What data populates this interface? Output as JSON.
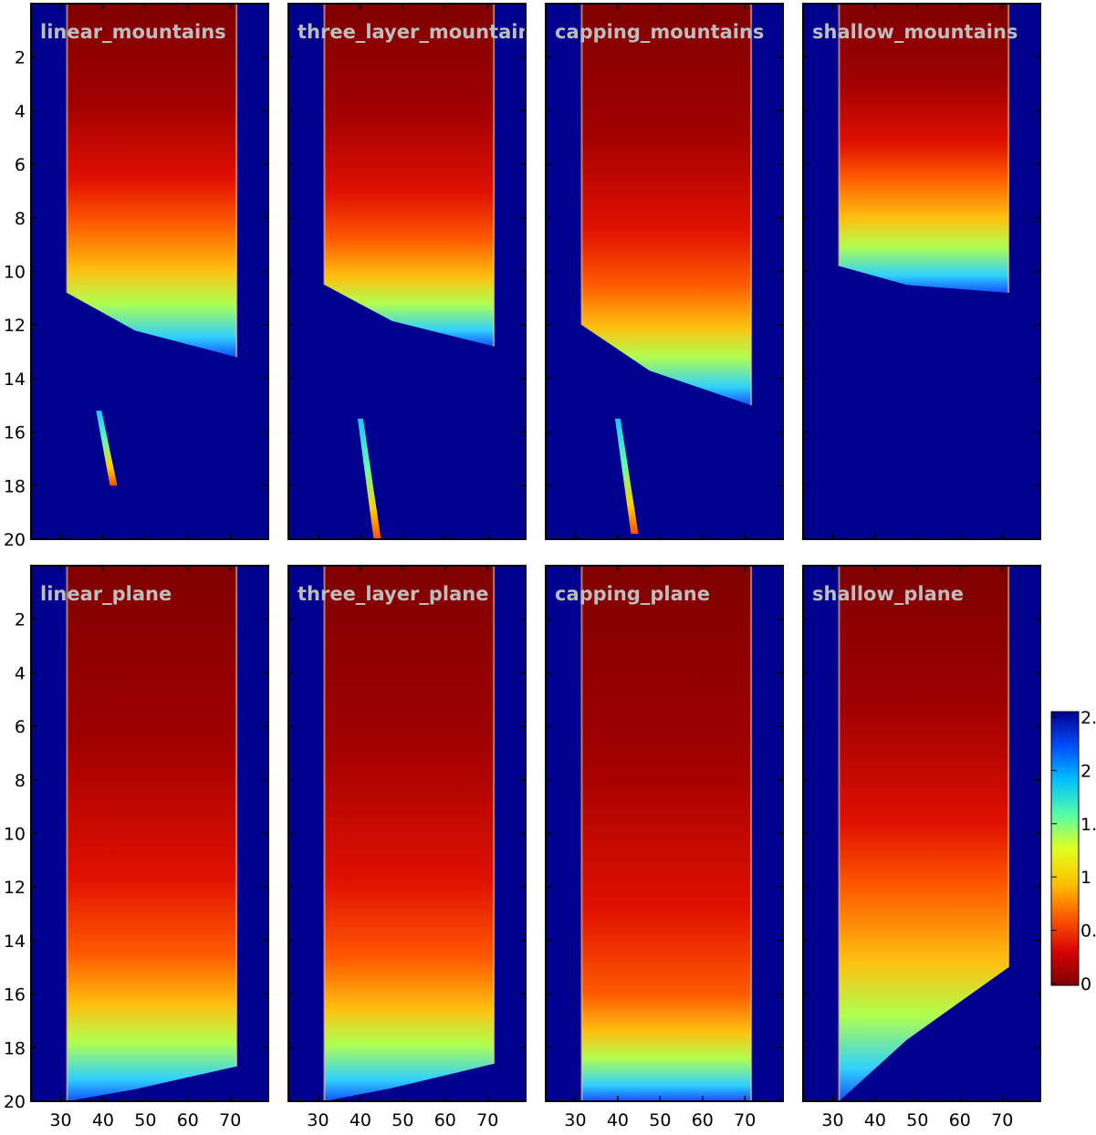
{
  "chart_data": {
    "type": "heatmap",
    "layout": "2 rows x 4 columns of panels",
    "x_axis": {
      "ticks": [
        30,
        40,
        50,
        60,
        70
      ],
      "range": [
        23,
        79
      ]
    },
    "y_axis": {
      "ticks": [
        2,
        4,
        6,
        8,
        10,
        12,
        14,
        16,
        18,
        20
      ],
      "range": [
        0,
        20
      ],
      "direction": "increasing downward"
    },
    "colorbar": {
      "ticks": [
        "0",
        "0.",
        "1",
        "1.",
        "2",
        "2."
      ],
      "colormap": [
        "#7f0000",
        "#d40000",
        "#ff5a00",
        "#ffc000",
        "#e0ff20",
        "#5affa4",
        "#00c0ff",
        "#0050ff",
        "#00008f"
      ]
    },
    "background_color": "#00008f",
    "panels": [
      {
        "title": "linear_mountains",
        "plume": {
          "left": 31.5,
          "right": 71.5,
          "y_front_left": 10.8,
          "y_front_right": 13.2,
          "depth_cool": 8.2
        },
        "streak": {
          "x0": 39,
          "x1": 42.5,
          "y0": 15.2,
          "y1": 18
        }
      },
      {
        "title": "three_layer_mountains",
        "plume": {
          "left": 31.5,
          "right": 71.5,
          "y_front_left": 10.5,
          "y_front_right": 12.8,
          "depth_cool": 8.8
        },
        "streak": {
          "x0": 40,
          "x1": 44,
          "y0": 15.5,
          "y1": 20
        }
      },
      {
        "title": "capping_mountains",
        "plume": {
          "left": 31.5,
          "right": 71.5,
          "y_front_left": 12.0,
          "y_front_right": 15.0,
          "depth_cool": 10.5
        },
        "streak": {
          "x0": 40,
          "x1": 44,
          "y0": 15.5,
          "y1": 19.8
        }
      },
      {
        "title": "shallow_mountains",
        "plume": {
          "left": 31.5,
          "right": 71.5,
          "y_front_left": 9.8,
          "y_front_right": 10.8,
          "depth_cool": 6.5
        },
        "streak": null
      },
      {
        "title": "linear_plane",
        "plume": {
          "left": 31.5,
          "right": 71.5,
          "y_front_left": 20.0,
          "y_front_right": 18.7,
          "depth_cool": 14.5
        },
        "streak": null
      },
      {
        "title": "three_layer_plane",
        "plume": {
          "left": 31.5,
          "right": 71.5,
          "y_front_left": 20.0,
          "y_front_right": 18.6,
          "depth_cool": 14.7
        },
        "streak": null
      },
      {
        "title": "capping_plane",
        "plume": {
          "left": 31.5,
          "right": 71.5,
          "y_front_left": 20.0,
          "y_front_right": 20.0,
          "depth_cool": 16.0
        },
        "streak": null
      },
      {
        "title": "shallow_plane",
        "plume": {
          "left": 31.5,
          "right": 71.5,
          "y_front_left": 20.0,
          "y_front_right": 15.0,
          "depth_cool": 12.0
        },
        "streak": null
      }
    ]
  }
}
